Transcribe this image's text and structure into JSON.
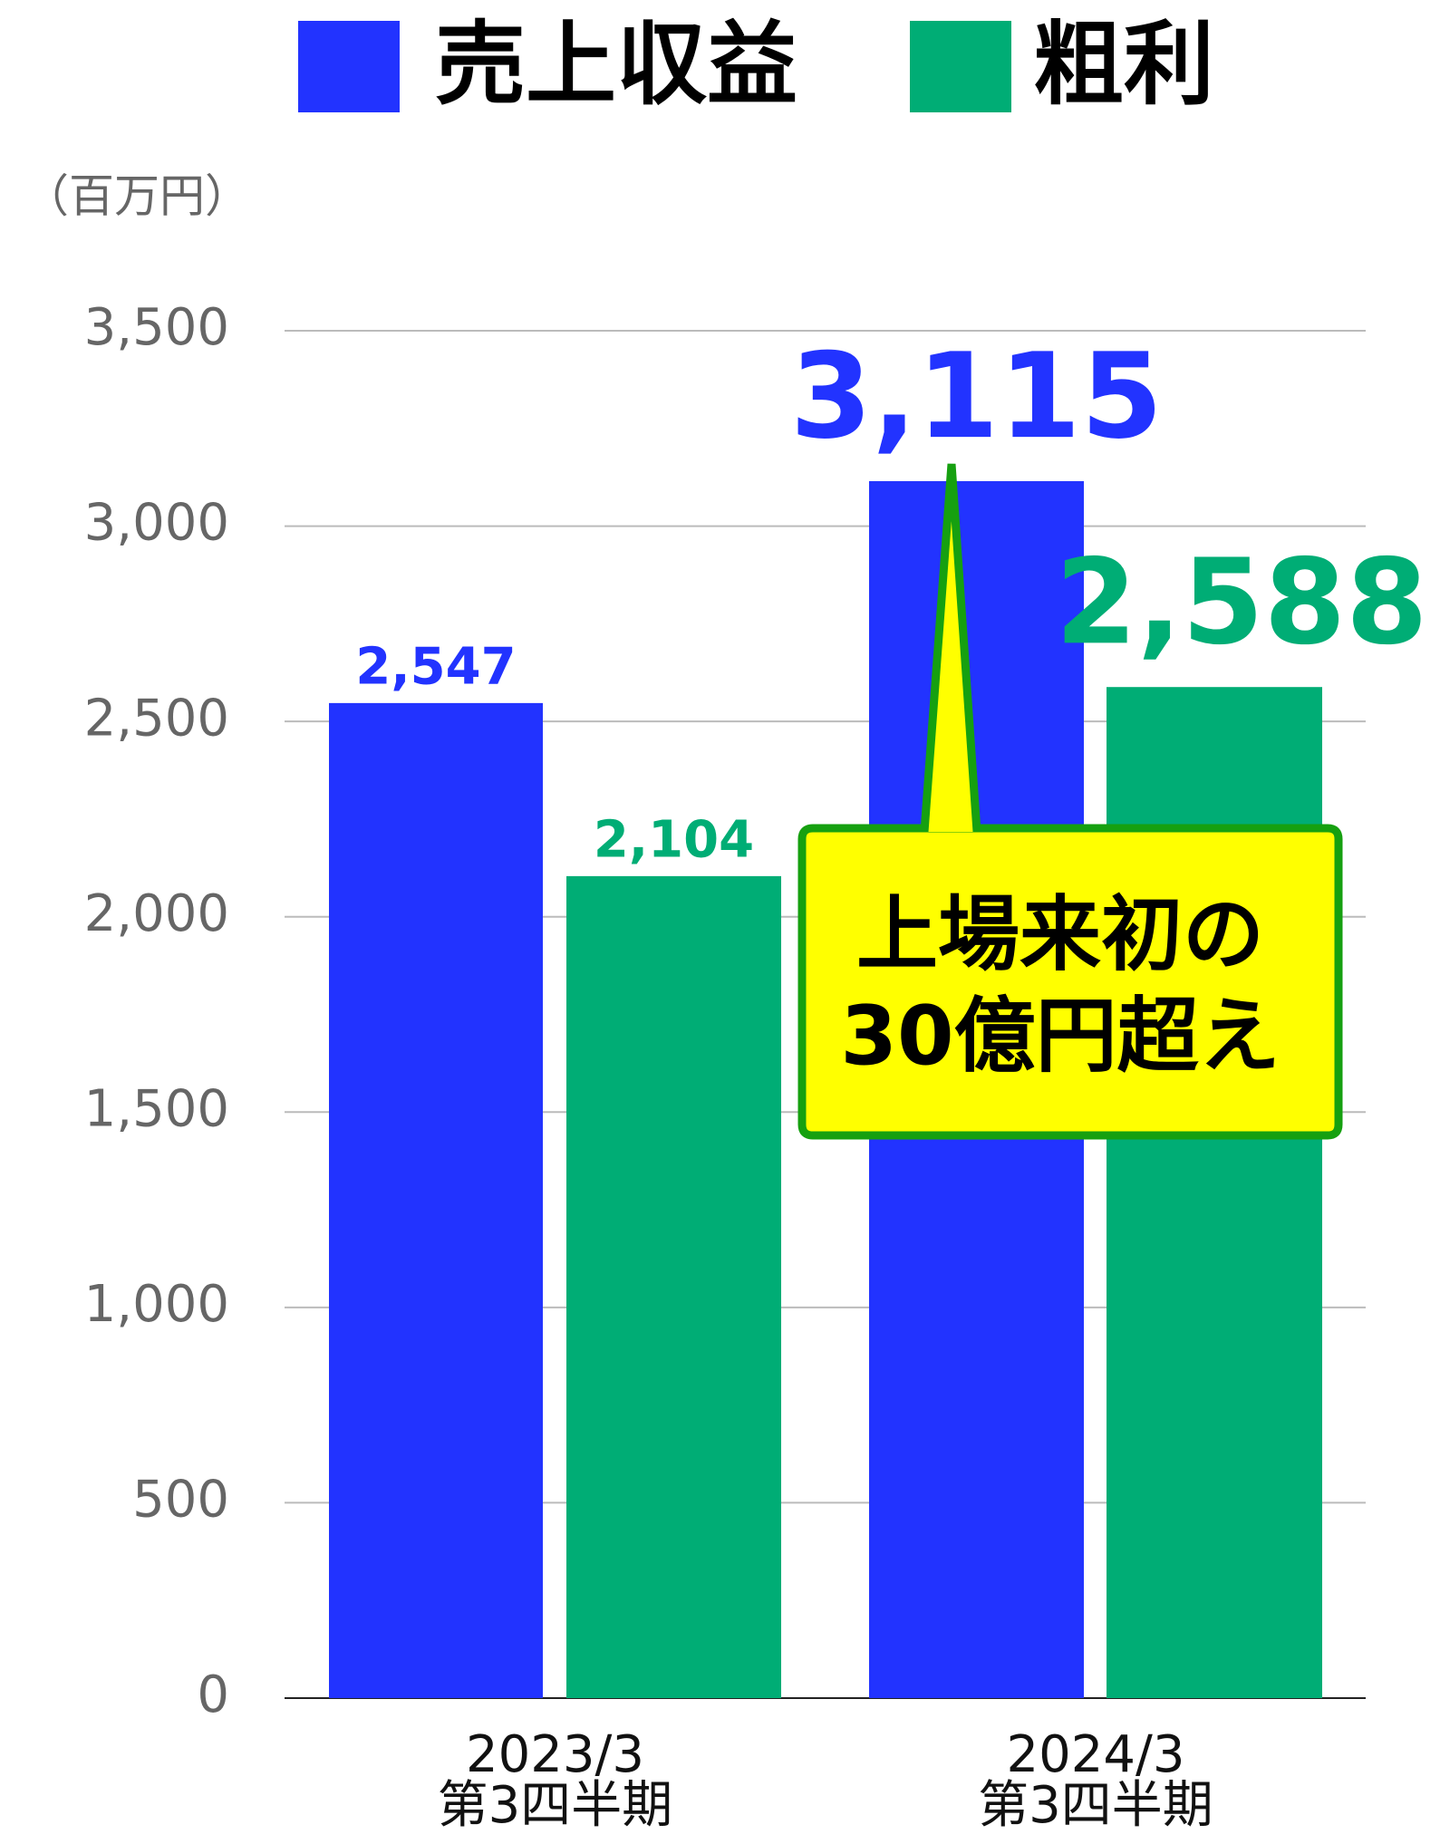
{
  "chart_data": {
    "type": "bar",
    "y_unit": "（百万円）",
    "categories": [
      [
        "2023/3",
        "第3四半期"
      ],
      [
        "2024/3",
        "第3四半期"
      ]
    ],
    "series": [
      {
        "name": "売上収益",
        "color": "#2233ff",
        "values": [
          2547,
          3115
        ],
        "value_labels": [
          "2,547",
          "3,115"
        ]
      },
      {
        "name": "粗利",
        "color": "#00ad75",
        "values": [
          2104,
          2588
        ],
        "value_labels": [
          "2,104",
          "2,588"
        ]
      }
    ],
    "ylim": [
      0,
      3500
    ],
    "yticks": [
      0,
      500,
      {
        "value": 1000,
        "label": "1,000"
      },
      {
        "value": 1500,
        "label": "1,500"
      },
      {
        "value": 2000,
        "label": "2,000"
      },
      {
        "value": 2500,
        "label": "2,500"
      },
      {
        "value": 3000,
        "label": "3,000"
      },
      {
        "value": 3500,
        "label": "3,500"
      }
    ],
    "grid": true,
    "annotation": [
      "上場来初の",
      "30億円超え"
    ]
  }
}
